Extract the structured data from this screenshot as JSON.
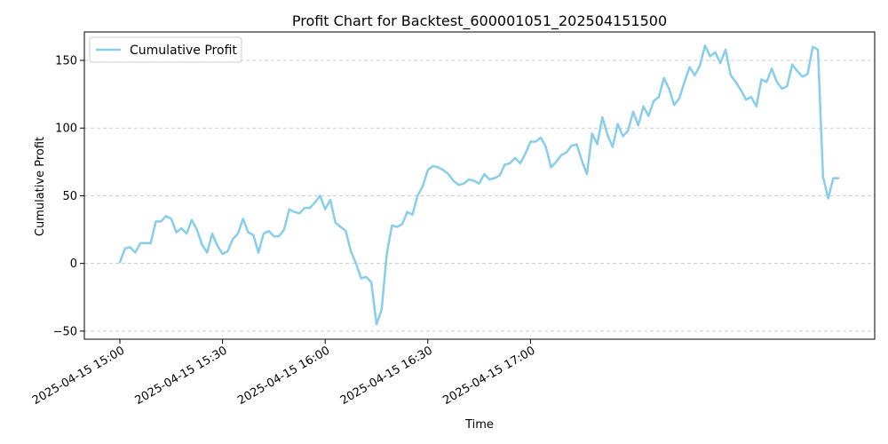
{
  "chart_data": {
    "type": "line",
    "title": "Profit Chart for Backtest_600001051_202504151500",
    "xlabel": "Time",
    "ylabel": "Cumulative Profit",
    "x_start": "2025-04-15 15:00",
    "x_step_minutes": 1.5,
    "x_ticks": [
      "2025-04-15 15:00",
      "2025-04-15 15:30",
      "2025-04-15 16:00",
      "2025-04-15 16:30",
      "2025-04-15 17:00"
    ],
    "y_ticks": [
      -50,
      0,
      50,
      100,
      150
    ],
    "ylim": [
      -56,
      171
    ],
    "grid": "y-dashed",
    "legend_position": "top-left",
    "series": [
      {
        "name": "Cumulative Profit",
        "color": "#87ceeb",
        "values": [
          1,
          11,
          12,
          8,
          15,
          15,
          15,
          31,
          31,
          35,
          33,
          23,
          26,
          22,
          32,
          25,
          14,
          8,
          22,
          13,
          7,
          9,
          18,
          22,
          33,
          23,
          21,
          8,
          22,
          24,
          20,
          20,
          25,
          40,
          38,
          37,
          41,
          41,
          45,
          50,
          40,
          47,
          30,
          27,
          24,
          9,
          0,
          -11,
          -10,
          -14,
          -45,
          -34,
          7,
          28,
          27,
          29,
          38,
          36,
          50,
          57,
          69,
          72,
          71,
          69,
          66,
          61,
          58,
          59,
          62,
          61,
          59,
          66,
          62,
          63,
          65,
          73,
          74,
          78,
          74,
          81,
          90,
          90,
          93,
          86,
          71,
          75,
          80,
          82,
          87,
          88,
          76,
          66,
          96,
          88,
          108,
          95,
          86,
          103,
          94,
          98,
          112,
          102,
          116,
          109,
          120,
          123,
          137,
          129,
          117,
          122,
          134,
          145,
          139,
          146,
          161,
          153,
          156,
          148,
          158,
          139,
          134,
          128,
          121,
          123,
          116,
          136,
          134,
          144,
          134,
          129,
          131,
          147,
          142,
          138,
          140,
          160,
          158,
          64,
          48,
          63,
          63
        ]
      }
    ]
  }
}
